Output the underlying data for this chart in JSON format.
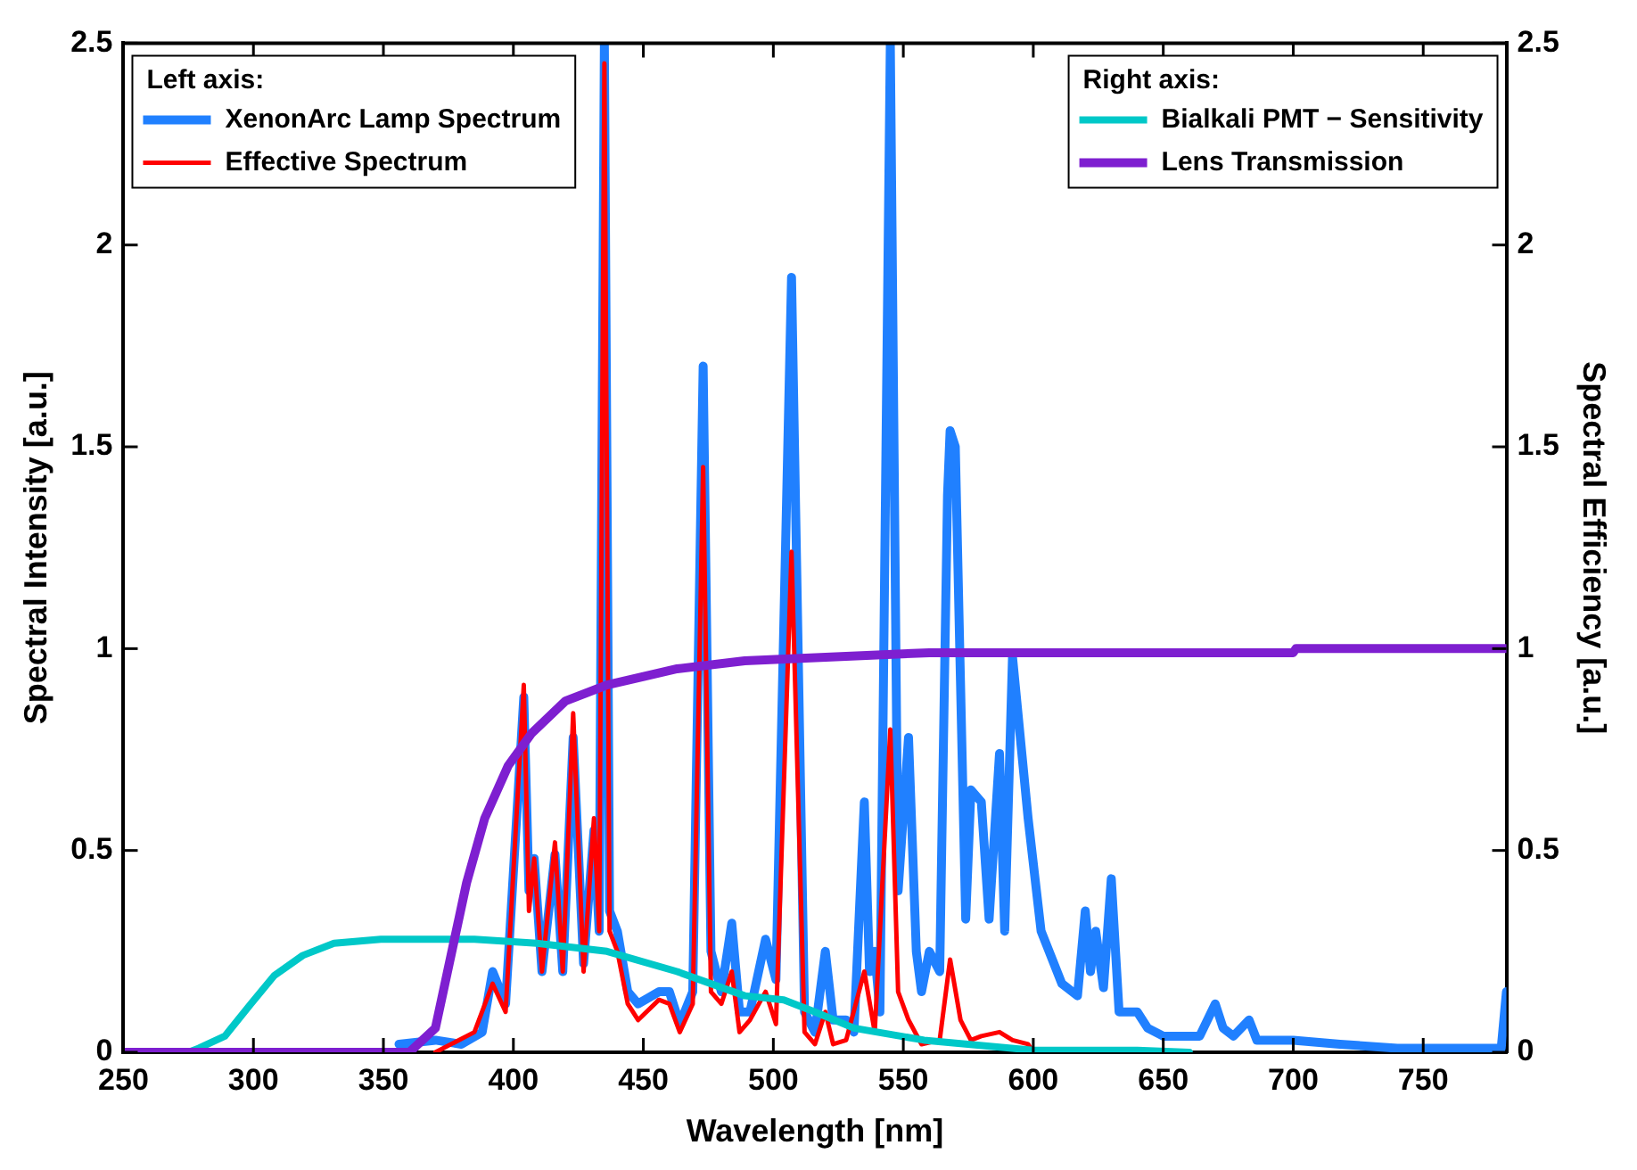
{
  "chart_data": {
    "type": "line",
    "xlabel": "Wavelength [nm]",
    "ylabel": "Spectral Intensity [a.u.]",
    "y2label": "Spectral Efficiency [a.u.]",
    "xlim": [
      250,
      782
    ],
    "xticks": [
      250,
      300,
      350,
      400,
      450,
      500,
      550,
      600,
      650,
      700,
      750
    ],
    "ylim": [
      0,
      2.5
    ],
    "yticks": [
      0,
      0.5,
      1,
      1.5,
      2,
      2.5
    ],
    "y2lim": [
      0,
      2.5
    ],
    "y2ticks": [
      0,
      0.5,
      1,
      1.5,
      2,
      2.5
    ],
    "grid": false,
    "legend": "top",
    "marker": "none",
    "line_style": "solid",
    "annotations": [
      "Left axis:",
      "Right axis:"
    ],
    "series": [
      {
        "name": "XenonArc Lamp Spectrum",
        "color": "#2080ff",
        "axis": "y",
        "x": [
          356,
          370,
          380,
          388,
          392,
          397,
          404,
          406,
          408,
          411,
          416,
          419,
          423,
          427,
          431,
          433,
          435,
          437,
          440,
          444,
          448,
          456,
          460,
          464,
          469,
          473,
          476,
          480,
          484,
          487,
          491,
          497,
          501,
          507,
          512,
          516,
          520,
          523,
          528,
          531,
          535,
          537,
          539,
          541,
          545,
          548,
          552,
          555,
          557,
          560,
          564,
          567,
          568,
          570,
          574,
          576,
          580,
          583,
          587,
          589,
          592,
          598,
          603,
          611,
          617,
          620,
          622,
          624,
          627,
          630,
          633,
          640,
          644,
          650,
          664,
          670,
          673,
          677,
          683,
          686,
          700,
          718,
          740,
          780,
          782
        ],
        "values": [
          0.02,
          0.03,
          0.02,
          0.05,
          0.2,
          0.12,
          0.88,
          0.4,
          0.48,
          0.2,
          0.49,
          0.2,
          0.78,
          0.22,
          0.55,
          0.3,
          2.5,
          0.35,
          0.3,
          0.15,
          0.12,
          0.15,
          0.15,
          0.07,
          0.15,
          1.7,
          0.25,
          0.15,
          0.32,
          0.1,
          0.1,
          0.28,
          0.18,
          1.92,
          0.1,
          0.05,
          0.25,
          0.08,
          0.08,
          0.05,
          0.62,
          0.2,
          0.25,
          0.1,
          2.5,
          0.4,
          0.78,
          0.25,
          0.15,
          0.25,
          0.2,
          1.38,
          1.54,
          1.5,
          0.33,
          0.65,
          0.62,
          0.33,
          0.74,
          0.3,
          0.98,
          0.58,
          0.3,
          0.17,
          0.14,
          0.35,
          0.2,
          0.3,
          0.16,
          0.43,
          0.1,
          0.1,
          0.06,
          0.04,
          0.04,
          0.12,
          0.06,
          0.04,
          0.08,
          0.03,
          0.03,
          0.02,
          0.01,
          0.01,
          0.15
        ]
      },
      {
        "name": "Effective Spectrum",
        "color": "#ff0000",
        "axis": "y",
        "x": [
          370,
          385,
          392,
          397,
          404,
          406,
          408,
          411,
          416,
          419,
          423,
          427,
          431,
          433,
          435,
          437,
          440,
          444,
          448,
          456,
          460,
          464,
          469,
          473,
          476,
          480,
          484,
          487,
          491,
          497,
          501,
          507,
          512,
          516,
          520,
          523,
          528,
          535,
          539,
          545,
          548,
          552,
          557,
          564,
          568,
          572,
          576,
          580,
          587,
          592,
          598,
          600
        ],
        "values": [
          0,
          0.05,
          0.17,
          0.1,
          0.91,
          0.35,
          0.48,
          0.2,
          0.52,
          0.2,
          0.84,
          0.2,
          0.58,
          0.3,
          2.45,
          0.3,
          0.25,
          0.12,
          0.08,
          0.13,
          0.12,
          0.05,
          0.12,
          1.45,
          0.15,
          0.12,
          0.2,
          0.05,
          0.08,
          0.15,
          0.07,
          1.24,
          0.05,
          0.02,
          0.1,
          0.02,
          0.03,
          0.2,
          0.05,
          0.8,
          0.15,
          0.08,
          0.02,
          0.03,
          0.23,
          0.08,
          0.03,
          0.04,
          0.05,
          0.03,
          0.02,
          0
        ]
      },
      {
        "name": "Bialkali PMT − Sensitivity",
        "color": "#00c8c8",
        "axis": "y2",
        "x": [
          250,
          275,
          279,
          289,
          299,
          308,
          319,
          331,
          349,
          385,
          409,
          436,
          463,
          489,
          504,
          516,
          531,
          558,
          600,
          640,
          660
        ],
        "values": [
          0,
          0,
          0.01,
          0.04,
          0.12,
          0.19,
          0.24,
          0.27,
          0.28,
          0.28,
          0.27,
          0.25,
          0.2,
          0.14,
          0.13,
          0.1,
          0.06,
          0.03,
          0.005,
          0.005,
          0
        ]
      },
      {
        "name": "Lens Transmission",
        "color": "#7e1fd0",
        "axis": "y2",
        "x": [
          250,
          360,
          370,
          376,
          382,
          389,
          398,
          407,
          420,
          436,
          463,
          489,
          524,
          560,
          700,
          701,
          782
        ],
        "values": [
          0,
          0,
          0.06,
          0.24,
          0.42,
          0.58,
          0.71,
          0.79,
          0.87,
          0.91,
          0.95,
          0.97,
          0.98,
          0.99,
          0.99,
          1,
          1
        ]
      }
    ]
  }
}
